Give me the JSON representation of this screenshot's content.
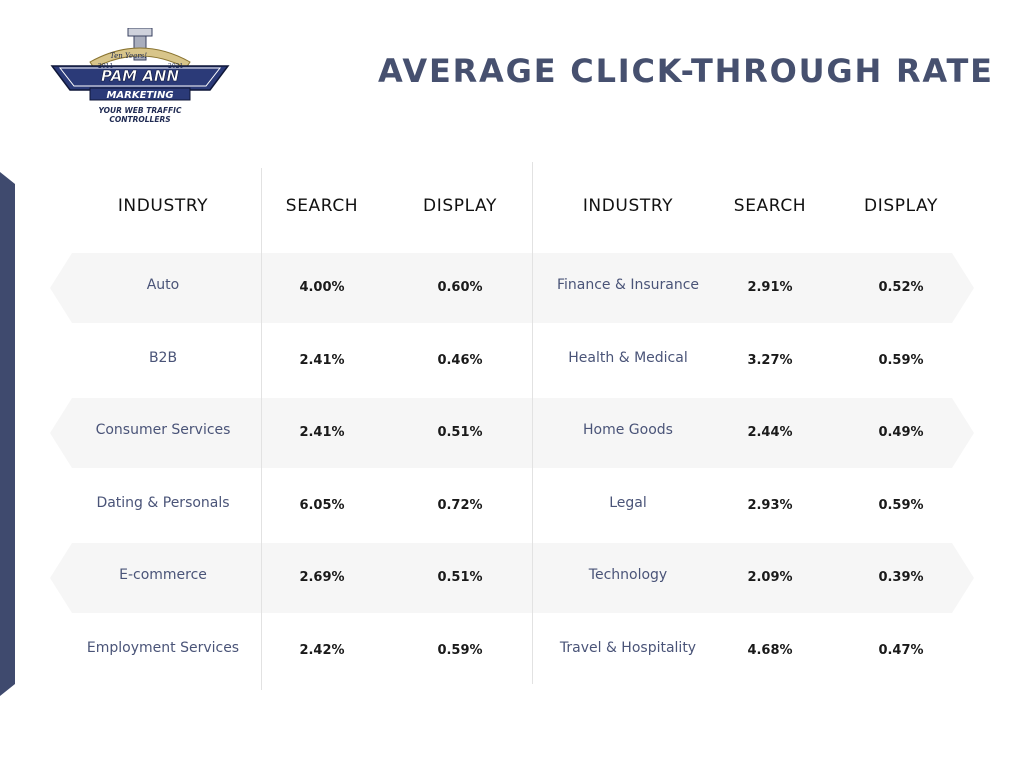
{
  "logo": {
    "badge_left": "2011",
    "badge_right": "2021",
    "banner": "Ten Years!",
    "line1": "PAM ANN",
    "line2": "MARKETING",
    "tagline1": "YOUR WEB TRAFFIC",
    "tagline2": "CONTROLLERS"
  },
  "colors": {
    "accent": "#3f4a6e",
    "title": "#46506f",
    "stripe": "#f6f6f6",
    "industry_text": "#4a5478"
  },
  "chart_data": {
    "type": "table",
    "title": "AVERAGE CLICK-THROUGH RATE",
    "headers": [
      "INDUSTRY",
      "SEARCH",
      "DISPLAY"
    ],
    "left_rows": [
      {
        "industry": "Auto",
        "search": "4.00%",
        "display": "0.60%"
      },
      {
        "industry": "B2B",
        "search": "2.41%",
        "display": "0.46%"
      },
      {
        "industry": "Consumer Services",
        "search": "2.41%",
        "display": "0.51%"
      },
      {
        "industry": "Dating & Personals",
        "search": "6.05%",
        "display": "0.72%"
      },
      {
        "industry": "E-commerce",
        "search": "2.69%",
        "display": "0.51%"
      },
      {
        "industry": "Employment Services",
        "search": "2.42%",
        "display": "0.59%"
      }
    ],
    "right_rows": [
      {
        "industry": "Finance & Insurance",
        "search": "2.91%",
        "display": "0.52%"
      },
      {
        "industry": "Health & Medical",
        "search": "3.27%",
        "display": "0.59%"
      },
      {
        "industry": "Home Goods",
        "search": "2.44%",
        "display": "0.49%"
      },
      {
        "industry": "Legal",
        "search": "2.93%",
        "display": "0.59%"
      },
      {
        "industry": "Technology",
        "search": "2.09%",
        "display": "0.39%"
      },
      {
        "industry": "Travel & Hospitality",
        "search": "4.68%",
        "display": "0.47%"
      }
    ]
  }
}
